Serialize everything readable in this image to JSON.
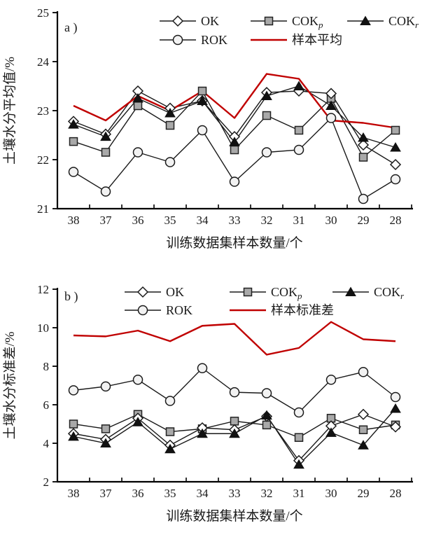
{
  "figure": {
    "background": "#ffffff",
    "text_color": "#1a1a1a",
    "axis_color": "#000000",
    "accent_red": "#c00000"
  },
  "chart_data": [
    {
      "id": "a",
      "type": "line",
      "panel_label": "a )",
      "xlabel": "训练数据集样本数量/个",
      "ylabel": "土壤水分平均值/%",
      "ylim": [
        21,
        25
      ],
      "yticks": [
        21,
        22,
        23,
        24,
        25
      ],
      "grid": false,
      "legend_position": "top-inside",
      "categories": [
        "38",
        "37",
        "36",
        "35",
        "34",
        "33",
        "32",
        "31",
        "30",
        "29",
        "28"
      ],
      "series": [
        {
          "name": "ROK",
          "label": "ROK",
          "sub": "",
          "marker": "circle",
          "line_color": "#1a1a1a",
          "line_width": 1.4,
          "marker_fill": "#f2f2f2",
          "marker_stroke": "#1a1a1a",
          "values": [
            21.75,
            21.35,
            22.15,
            21.95,
            22.6,
            21.55,
            22.15,
            22.2,
            22.85,
            21.2,
            21.6
          ]
        },
        {
          "name": "COKp",
          "label": "COK",
          "sub": "p",
          "marker": "square",
          "line_color": "#1a1a1a",
          "line_width": 1.4,
          "marker_fill": "#a9a9a9",
          "marker_stroke": "#222222",
          "values": [
            22.37,
            22.15,
            23.1,
            22.7,
            23.4,
            22.2,
            22.9,
            22.6,
            23.25,
            22.05,
            22.6
          ]
        },
        {
          "name": "OK",
          "label": "OK",
          "sub": "",
          "marker": "diamond",
          "line_color": "#1a1a1a",
          "line_width": 1.4,
          "marker_fill": "#ffffff",
          "marker_stroke": "#1a1a1a",
          "values": [
            22.78,
            22.52,
            23.4,
            23.05,
            23.2,
            22.47,
            23.37,
            23.4,
            23.35,
            22.3,
            21.9
          ]
        },
        {
          "name": "COKr",
          "label": "COK",
          "sub": "r",
          "marker": "triangle",
          "line_color": "#1a1a1a",
          "line_width": 1.4,
          "marker_fill": "#111111",
          "marker_stroke": "#111111",
          "values": [
            22.72,
            22.47,
            23.25,
            22.95,
            23.2,
            22.36,
            23.3,
            23.5,
            23.1,
            22.45,
            22.25
          ]
        },
        {
          "name": "sample-mean",
          "label": "样本平均",
          "sub": "",
          "marker": "none",
          "line_color": "#c00000",
          "line_width": 2.4,
          "marker_fill": "",
          "marker_stroke": "",
          "values": [
            23.1,
            22.8,
            23.3,
            23.0,
            23.4,
            22.85,
            23.75,
            23.65,
            22.8,
            22.75,
            22.65
          ]
        }
      ],
      "legend_rows": [
        [
          "OK",
          "COKp",
          "COKr"
        ],
        [
          "ROK",
          "sample-mean"
        ]
      ]
    },
    {
      "id": "b",
      "type": "line",
      "panel_label": "b )",
      "xlabel": "训练数据集样本数量/个",
      "ylabel": "土壤水分标准差/%",
      "ylim": [
        2,
        12
      ],
      "yticks": [
        2,
        4,
        6,
        8,
        10,
        12
      ],
      "grid": false,
      "legend_position": "top-inside",
      "categories": [
        "38",
        "37",
        "36",
        "35",
        "34",
        "33",
        "32",
        "31",
        "30",
        "29",
        "28"
      ],
      "series": [
        {
          "name": "ROK",
          "label": "ROK",
          "sub": "",
          "marker": "circle",
          "line_color": "#1a1a1a",
          "line_width": 1.4,
          "marker_fill": "#f2f2f2",
          "marker_stroke": "#1a1a1a",
          "values": [
            6.75,
            6.95,
            7.3,
            6.2,
            7.9,
            6.65,
            6.6,
            5.6,
            7.3,
            7.7,
            6.4
          ]
        },
        {
          "name": "COKp",
          "label": "COK",
          "sub": "p",
          "marker": "square",
          "line_color": "#1a1a1a",
          "line_width": 1.4,
          "marker_fill": "#a9a9a9",
          "marker_stroke": "#222222",
          "values": [
            5.0,
            4.75,
            5.5,
            4.6,
            4.75,
            5.15,
            4.95,
            4.3,
            5.3,
            4.7,
            4.95
          ]
        },
        {
          "name": "OK",
          "label": "OK",
          "sub": "",
          "marker": "diamond",
          "line_color": "#1a1a1a",
          "line_width": 1.4,
          "marker_fill": "#ffffff",
          "marker_stroke": "#1a1a1a",
          "values": [
            4.5,
            4.2,
            5.3,
            3.9,
            4.8,
            4.7,
            5.4,
            3.1,
            4.9,
            5.5,
            4.85
          ]
        },
        {
          "name": "COKr",
          "label": "COK",
          "sub": "r",
          "marker": "triangle",
          "line_color": "#1a1a1a",
          "line_width": 1.4,
          "marker_fill": "#111111",
          "marker_stroke": "#111111",
          "values": [
            4.35,
            4.0,
            5.1,
            3.7,
            4.5,
            4.5,
            5.45,
            2.9,
            4.55,
            3.9,
            5.8
          ]
        },
        {
          "name": "sample-std",
          "label": "样本标准差",
          "sub": "",
          "marker": "none",
          "line_color": "#c00000",
          "line_width": 2.4,
          "marker_fill": "",
          "marker_stroke": "",
          "values": [
            9.6,
            9.55,
            9.85,
            9.3,
            10.1,
            10.2,
            8.6,
            8.95,
            10.3,
            9.4,
            9.3
          ]
        }
      ],
      "legend_rows": [
        [
          "OK",
          "COKp",
          "COKr"
        ],
        [
          "ROK",
          "sample-std"
        ]
      ]
    }
  ]
}
